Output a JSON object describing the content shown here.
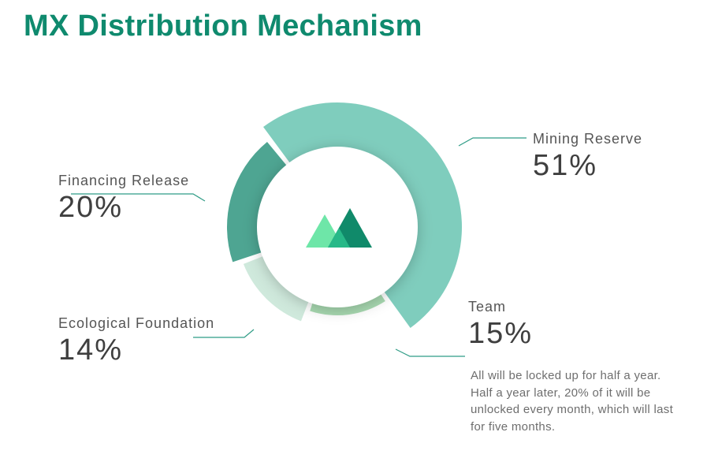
{
  "header": {
    "title": "MX Distribution Mechanism"
  },
  "chart_data": {
    "type": "pie",
    "title": "MX Distribution Mechanism",
    "categories": [
      "Mining Reserve",
      "Team",
      "Ecological Foundation",
      "Financing Release"
    ],
    "values": [
      51,
      15,
      14,
      20
    ],
    "colors": [
      "#7fcdbd",
      "#a8d9b1",
      "#cfe9dc",
      "#4ea592"
    ]
  },
  "labels": [
    {
      "name": "Mining Reserve",
      "pct": "51%"
    },
    {
      "name": "Team",
      "pct": "15%"
    },
    {
      "name": "Ecological Foundation",
      "pct": "14%"
    },
    {
      "name": "Financing Release",
      "pct": "20%"
    }
  ],
  "team_note": "All will be locked up for half a year. Half a year later, 20% of it will be unlocked every month, which will last for five months.",
  "logo": {
    "name": "mexc-logo-icon",
    "colors": [
      "#6ee6a8",
      "#27b988",
      "#108a6a"
    ]
  }
}
